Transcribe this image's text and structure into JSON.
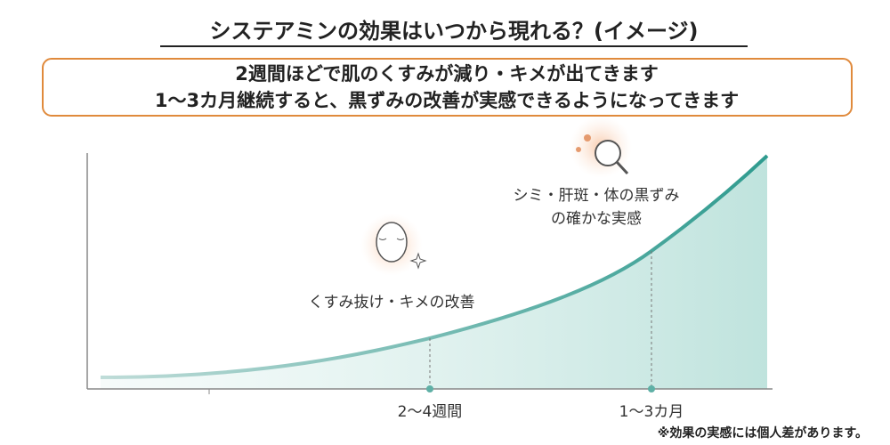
{
  "header": {
    "title": "システアミンの効果はいつから現れる？(イメージ)"
  },
  "callout": {
    "lines": [
      "2週間ほどで肌のくすみが減り・キメが出てきます",
      "1～3カ月継続すると、黒ずみの改善が実感できるようになってきます"
    ]
  },
  "diagram": {
    "stages": [
      {
        "label": "くすみ抜け・キメの改善",
        "period": "2～4週間"
      },
      {
        "label_lines": [
          "シミ・肝斑・体の黒ずみ",
          "の確かな実感"
        ],
        "period": "1～3カ月"
      }
    ],
    "note": "※効果の実感には個人差があります。"
  }
}
